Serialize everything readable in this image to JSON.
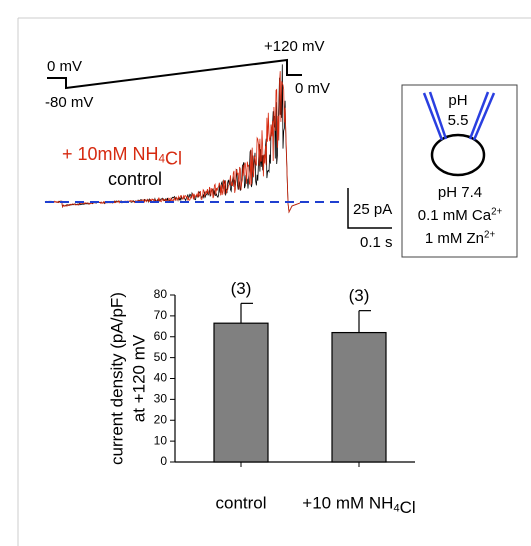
{
  "chart_data": {
    "type": "bar",
    "categories": [
      "control",
      "+10 mM NH4Cl"
    ],
    "values": [
      66.5,
      62
    ],
    "errors": [
      9.5,
      10.5
    ],
    "value_labels": [
      "(3)",
      "(3)"
    ],
    "color": "#808080",
    "ylabel": [
      "current density (pA/pF)",
      "at +120 mV"
    ],
    "ylim": [
      0,
      80
    ],
    "yticks": [
      0,
      10,
      20,
      30,
      40,
      50,
      60,
      70,
      80
    ],
    "grid": false
  },
  "trace_panel": {
    "protocol_labels": [
      "0 mV",
      "-80 mV",
      "+120 mV",
      "0 mV"
    ],
    "legend": [
      {
        "name": "+ 10mM NH4Cl",
        "color": "#d62a10"
      },
      {
        "name": "control",
        "color": "#000000"
      }
    ],
    "scale_bars": [
      "25 pA",
      "0.1 s"
    ]
  },
  "inset": {
    "pipette_ph": [
      "pH",
      "5.5"
    ],
    "bath": [
      "pH 7.4",
      "0.1 mM Ca2+",
      "1 mM Zn2+"
    ]
  }
}
